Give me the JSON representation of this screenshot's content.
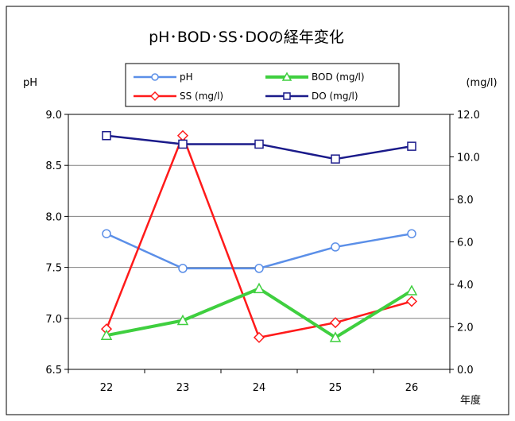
{
  "chart_data": {
    "type": "line",
    "title": "pH･BOD･SS･DOの経年変化",
    "xlabel": "年度",
    "ylabel_left": "pH",
    "ylabel_right": "(mg/l)",
    "categories": [
      "22",
      "23",
      "24",
      "25",
      "26"
    ],
    "left_axis": {
      "ylim": [
        6.5,
        9.0
      ],
      "ticks": [
        "6.5",
        "7.0",
        "7.5",
        "8.0",
        "8.5",
        "9.0"
      ]
    },
    "right_axis": {
      "ylim": [
        0.0,
        12.0
      ],
      "ticks": [
        "0.0",
        "2.0",
        "4.0",
        "6.0",
        "8.0",
        "10.0",
        "12.0"
      ]
    },
    "gridlines": "horizontal",
    "legend_position": "top",
    "series": [
      {
        "name": "pH",
        "axis": "left",
        "color": "#5b8fe8",
        "marker": "circle",
        "values": [
          7.83,
          7.49,
          7.49,
          7.7,
          7.83
        ]
      },
      {
        "name": "SS (mg/l)",
        "axis": "right",
        "color": "#ff1a1a",
        "marker": "diamond",
        "values": [
          1.9,
          11.0,
          1.5,
          2.2,
          3.2
        ]
      },
      {
        "name": "BOD (mg/l)",
        "axis": "right",
        "color": "#3fcf3f",
        "marker": "triangle",
        "values": [
          1.6,
          2.3,
          3.8,
          1.5,
          3.7
        ]
      },
      {
        "name": "DO (mg/l)",
        "axis": "right",
        "color": "#1a1a8a",
        "marker": "square",
        "values": [
          11.0,
          10.6,
          10.6,
          9.9,
          10.5
        ]
      }
    ]
  }
}
